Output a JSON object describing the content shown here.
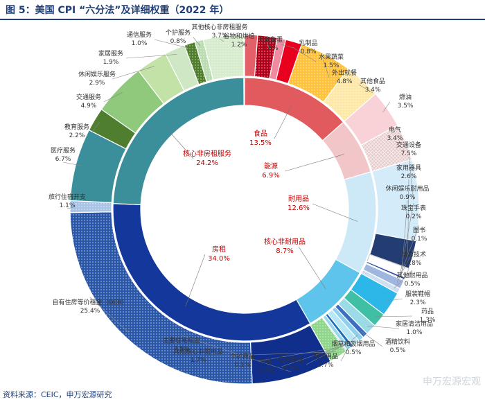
{
  "header": {
    "title": "图 5：美国 CPI “六分法”及详细权重（2022 年）"
  },
  "footer": {
    "source": "资料来源：CEIC，申万宏源研究"
  },
  "watermark": {
    "text": "申万宏源宏观"
  },
  "chart_data": {
    "type": "pie",
    "subtype": "sunburst",
    "inner": [
      {
        "name": "食品",
        "value": 13.5,
        "label": "13.5%",
        "color": "#e05a5e"
      },
      {
        "name": "能源",
        "value": 6.9,
        "label": "6.9%",
        "color": "#f2c6c9"
      },
      {
        "name": "耐用品",
        "value": 12.6,
        "label": "12.6%",
        "color": "#cde9f8"
      },
      {
        "name": "核心非耐用品",
        "value": 8.7,
        "label": "8.7%",
        "color": "#5fc4ec"
      },
      {
        "name": "房租",
        "value": 34.0,
        "label": "34.0%",
        "color": "#13379a"
      },
      {
        "name": "核心非房租服务",
        "value": 24.2,
        "label": "24.2%",
        "color": "#3a8f9a"
      }
    ],
    "outer": [
      {
        "name": "谷物和烘焙",
        "value": 1.2,
        "label": "1.2%",
        "color": "#e36069"
      },
      {
        "name": "肉禽鱼蛋",
        "value": 1.8,
        "label": "1.8%",
        "color": "#b3001a",
        "pattern": "dots"
      },
      {
        "name": "乳制品",
        "value": 0.8,
        "label": "0.8%",
        "color": "#f08aa0"
      },
      {
        "name": "水果蔬菜",
        "value": 1.5,
        "label": "1.5%",
        "color": "#e8001e"
      },
      {
        "name": "外出就餐",
        "value": 4.8,
        "label": "4.8%",
        "color": "#ffc23a",
        "pattern": "dots"
      },
      {
        "name": "其他食品",
        "value": 3.4,
        "label": "3.4%",
        "color": "#fde8a8",
        "pattern": "dots"
      },
      {
        "name": "燃油",
        "value": 3.5,
        "label": "3.5%",
        "color": "#f8d2d6"
      },
      {
        "name": "电气",
        "value": 3.4,
        "label": "3.4%",
        "color": "#e6caca",
        "pattern": "cross"
      },
      {
        "name": "交通设备",
        "value": 7.5,
        "label": "7.5%",
        "color": "#d4ebf9"
      },
      {
        "name": "家用器具",
        "value": 2.6,
        "label": "2.6%",
        "color": "#233d73"
      },
      {
        "name": "休闲娱乐耐用品",
        "value": 0.9,
        "label": "0.9%",
        "color": "#ffffff"
      },
      {
        "name": "珠宝手表",
        "value": 0.2,
        "label": "0.2%",
        "color": "#2b4e9a"
      },
      {
        "name": "图书",
        "value": 0.1,
        "label": "0.1%",
        "color": "#8db3de"
      },
      {
        "name": "信息技术",
        "value": 0.8,
        "label": "0.8%",
        "color": "#9fb7df"
      },
      {
        "name": "其他耐用品",
        "value": 0.5,
        "label": "0.5%",
        "color": "#cfdff2"
      },
      {
        "name": "服装鞋帽",
        "value": 2.3,
        "label": "2.3%",
        "color": "#2db7e8"
      },
      {
        "name": "药品",
        "value": 1.3,
        "label": "1.3%",
        "color": "#3fbfa3"
      },
      {
        "name": "家居清洁用品",
        "value": 1.0,
        "label": "1.0%",
        "color": "#9adbe6"
      },
      {
        "name": "酒精饮料",
        "value": 0.5,
        "label": "0.5%",
        "color": "#3c6fc2"
      },
      {
        "name": "烟草和吸烟用品",
        "value": 0.5,
        "label": "0.5%",
        "color": "#8ed0ee"
      },
      {
        "name": "宠物用品",
        "value": 0.7,
        "label": "0.7%",
        "color": "#b7e6f4"
      },
      {
        "name": "窗帘地毯",
        "value": 0.3,
        "label": "0.3%",
        "color": "#1c6fb8"
      },
      {
        "name": "玩具",
        "value": 0.4,
        "label": "0.4%",
        "color": "#9ad9ec"
      },
      {
        "name": "个护商品",
        "value": 0.1,
        "label": "0.1%",
        "color": "#5a7fb8"
      },
      {
        "name": "其他核心非耐用品",
        "value": 1.7,
        "label": "1.7%",
        "color": "#8ed68a",
        "pattern": "dots"
      },
      {
        "name": "主要住宅租金",
        "value": 7.5,
        "label": "7.5%",
        "color": "#102f8c"
      },
      {
        "name": "自有住房等价租金（OER）",
        "value": 25.4,
        "label": "25.4%",
        "color": "#2a56a8",
        "pattern": "dots"
      },
      {
        "name": "旅行住宿开支",
        "value": 1.1,
        "label": "1.1%",
        "color": "#a8c3e6",
        "pattern": "dots"
      },
      {
        "name": "医疗服务",
        "value": 6.7,
        "label": "6.7%",
        "color": "#3a8f9a"
      },
      {
        "name": "教育服务",
        "value": 2.2,
        "label": "2.2%",
        "color": "#4e7e2e"
      },
      {
        "name": "交通服务",
        "value": 4.9,
        "label": "4.9%",
        "color": "#8fc97c"
      },
      {
        "name": "休闲娱乐服务",
        "value": 2.9,
        "label": "2.9%",
        "color": "#c3e2a8"
      },
      {
        "name": "家居服务",
        "value": 1.9,
        "label": "1.9%",
        "color": "#cfe7c4"
      },
      {
        "name": "通信服务",
        "value": 1.0,
        "label": "1.0%",
        "color": "#4f7e2a",
        "pattern": "dots"
      },
      {
        "name": "个护服务",
        "value": 0.8,
        "label": "0.8%",
        "color": "#b9dcb0",
        "pattern": "dots"
      },
      {
        "name": "其他核心非房租服务",
        "value": 3.7,
        "label": "3.7%",
        "color": "#d6eccc",
        "pattern": "dots"
      }
    ],
    "total": 100
  }
}
